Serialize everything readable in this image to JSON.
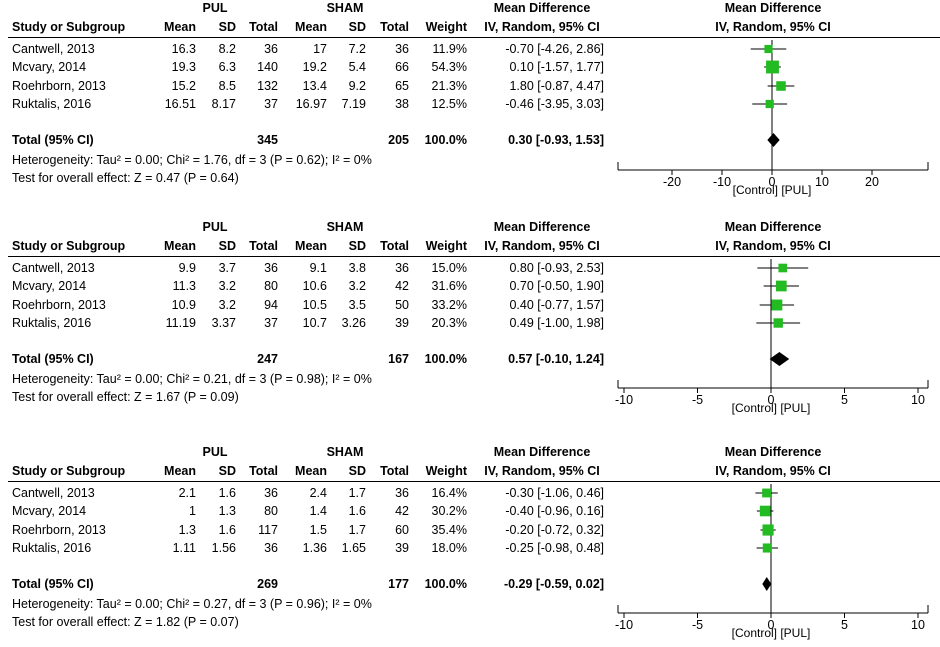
{
  "colors": {
    "square": "#22bb22",
    "line": "#000000",
    "diamond": "#000000"
  },
  "common": {
    "group1": "PUL",
    "group2": "SHAM",
    "col_study": "Study or Subgroup",
    "col_mean": "Mean",
    "col_sd": "SD",
    "col_total": "Total",
    "col_weight": "Weight",
    "col_md": "Mean Difference",
    "col_md_sub": "IV, Random, 95% CI",
    "plot_title": "Mean Difference",
    "plot_sub": "IV, Random, 95% CI",
    "favours": "[Control]  [PUL]",
    "total_label": "Total (95% CI)"
  },
  "chart_data": [
    {
      "type": "forest",
      "rows": [
        {
          "study": "Cantwell, 2013",
          "pul_mean": "16.3",
          "pul_sd": "8.2",
          "pul_total": "36",
          "sham_mean": "17",
          "sham_sd": "7.2",
          "sham_total": "36",
          "weight": "11.9%",
          "ci_text": "-0.70 [-4.26, 2.86]",
          "md": -0.7,
          "lo": -4.26,
          "hi": 2.86,
          "w": 11.9
        },
        {
          "study": "Mcvary, 2014",
          "pul_mean": "19.3",
          "pul_sd": "6.3",
          "pul_total": "140",
          "sham_mean": "19.2",
          "sham_sd": "5.4",
          "sham_total": "66",
          "weight": "54.3%",
          "ci_text": "0.10 [-1.57, 1.77]",
          "md": 0.1,
          "lo": -1.57,
          "hi": 1.77,
          "w": 54.3
        },
        {
          "study": "Roehrborn, 2013",
          "pul_mean": "15.2",
          "pul_sd": "8.5",
          "pul_total": "132",
          "sham_mean": "13.4",
          "sham_sd": "9.2",
          "sham_total": "65",
          "weight": "21.3%",
          "ci_text": "1.80 [-0.87, 4.47]",
          "md": 1.8,
          "lo": -0.87,
          "hi": 4.47,
          "w": 21.3
        },
        {
          "study": "Ruktalis, 2016",
          "pul_mean": "16.51",
          "pul_sd": "8.17",
          "pul_total": "37",
          "sham_mean": "16.97",
          "sham_sd": "7.19",
          "sham_total": "38",
          "weight": "12.5%",
          "ci_text": "-0.46 [-3.95, 3.03]",
          "md": -0.46,
          "lo": -3.95,
          "hi": 3.03,
          "w": 12.5
        }
      ],
      "total": {
        "pul_total": "345",
        "sham_total": "205",
        "weight": "100.0%",
        "ci_text": "0.30 [-0.93, 1.53]",
        "md": 0.3,
        "lo": -0.93,
        "hi": 1.53
      },
      "heterogeneity": "Heterogeneity: Tau² = 0.00; Chi² = 1.76, df = 3 (P = 0.62); I² = 0%",
      "overall": "Test for overall effect: Z = 0.47 (P = 0.64)",
      "xlim": [
        -25,
        25
      ],
      "ticks": [
        -20,
        -10,
        0,
        10,
        20
      ],
      "tick_labels": [
        "-20",
        "-10",
        "0",
        "10",
        "20"
      ]
    },
    {
      "type": "forest",
      "rows": [
        {
          "study": "Cantwell, 2013",
          "pul_mean": "9.9",
          "pul_sd": "3.7",
          "pul_total": "36",
          "sham_mean": "9.1",
          "sham_sd": "3.8",
          "sham_total": "36",
          "weight": "15.0%",
          "ci_text": "0.80 [-0.93, 2.53]",
          "md": 0.8,
          "lo": -0.93,
          "hi": 2.53,
          "w": 15.0
        },
        {
          "study": "Mcvary, 2014",
          "pul_mean": "11.3",
          "pul_sd": "3.2",
          "pul_total": "80",
          "sham_mean": "10.6",
          "sham_sd": "3.2",
          "sham_total": "42",
          "weight": "31.6%",
          "ci_text": "0.70 [-0.50, 1.90]",
          "md": 0.7,
          "lo": -0.5,
          "hi": 1.9,
          "w": 31.6
        },
        {
          "study": "Roehrborn, 2013",
          "pul_mean": "10.9",
          "pul_sd": "3.2",
          "pul_total": "94",
          "sham_mean": "10.5",
          "sham_sd": "3.5",
          "sham_total": "50",
          "weight": "33.2%",
          "ci_text": "0.40 [-0.77, 1.57]",
          "md": 0.4,
          "lo": -0.77,
          "hi": 1.57,
          "w": 33.2
        },
        {
          "study": "Ruktalis, 2016",
          "pul_mean": "11.19",
          "pul_sd": "3.37",
          "pul_total": "37",
          "sham_mean": "10.7",
          "sham_sd": "3.26",
          "sham_total": "39",
          "weight": "20.3%",
          "ci_text": "0.49 [-1.00, 1.98]",
          "md": 0.49,
          "lo": -1.0,
          "hi": 1.98,
          "w": 20.3
        }
      ],
      "total": {
        "pul_total": "247",
        "sham_total": "167",
        "weight": "100.0%",
        "ci_text": "0.57 [-0.10, 1.24]",
        "md": 0.57,
        "lo": -0.1,
        "hi": 1.24
      },
      "heterogeneity": "Heterogeneity: Tau² = 0.00; Chi² = 0.21, df = 3 (P = 0.98); I² = 0%",
      "overall": "Test for overall effect: Z = 1.67 (P = 0.09)",
      "xlim": [
        -10,
        10
      ],
      "ticks": [
        -10,
        -5,
        0,
        5,
        10
      ],
      "tick_labels": [
        "-10",
        "-5",
        "0",
        "5",
        "10"
      ]
    },
    {
      "type": "forest",
      "rows": [
        {
          "study": "Cantwell, 2013",
          "pul_mean": "2.1",
          "pul_sd": "1.6",
          "pul_total": "36",
          "sham_mean": "2.4",
          "sham_sd": "1.7",
          "sham_total": "36",
          "weight": "16.4%",
          "ci_text": "-0.30 [-1.06, 0.46]",
          "md": -0.3,
          "lo": -1.06,
          "hi": 0.46,
          "w": 16.4
        },
        {
          "study": "Mcvary, 2014",
          "pul_mean": "1",
          "pul_sd": "1.3",
          "pul_total": "80",
          "sham_mean": "1.4",
          "sham_sd": "1.6",
          "sham_total": "42",
          "weight": "30.2%",
          "ci_text": "-0.40 [-0.96, 0.16]",
          "md": -0.4,
          "lo": -0.96,
          "hi": 0.16,
          "w": 30.2
        },
        {
          "study": "Roehrborn, 2013",
          "pul_mean": "1.3",
          "pul_sd": "1.6",
          "pul_total": "117",
          "sham_mean": "1.5",
          "sham_sd": "1.7",
          "sham_total": "60",
          "weight": "35.4%",
          "ci_text": "-0.20 [-0.72, 0.32]",
          "md": -0.2,
          "lo": -0.72,
          "hi": 0.32,
          "w": 35.4
        },
        {
          "study": "Ruktalis, 2016",
          "pul_mean": "1.11",
          "pul_sd": "1.56",
          "pul_total": "36",
          "sham_mean": "1.36",
          "sham_sd": "1.65",
          "sham_total": "39",
          "weight": "18.0%",
          "ci_text": "-0.25 [-0.98, 0.48]",
          "md": -0.25,
          "lo": -0.98,
          "hi": 0.48,
          "w": 18.0
        }
      ],
      "total": {
        "pul_total": "269",
        "sham_total": "177",
        "weight": "100.0%",
        "ci_text": "-0.29 [-0.59, 0.02]",
        "md": -0.29,
        "lo": -0.59,
        "hi": 0.02
      },
      "heterogeneity": "Heterogeneity: Tau² = 0.00; Chi² = 0.27, df = 3 (P = 0.96); I² = 0%",
      "overall": "Test for overall effect: Z = 1.82 (P = 0.07)",
      "xlim": [
        -10,
        10
      ],
      "ticks": [
        -10,
        -5,
        0,
        5,
        10
      ],
      "tick_labels": [
        "-10",
        "-5",
        "0",
        "5",
        "10"
      ]
    }
  ]
}
